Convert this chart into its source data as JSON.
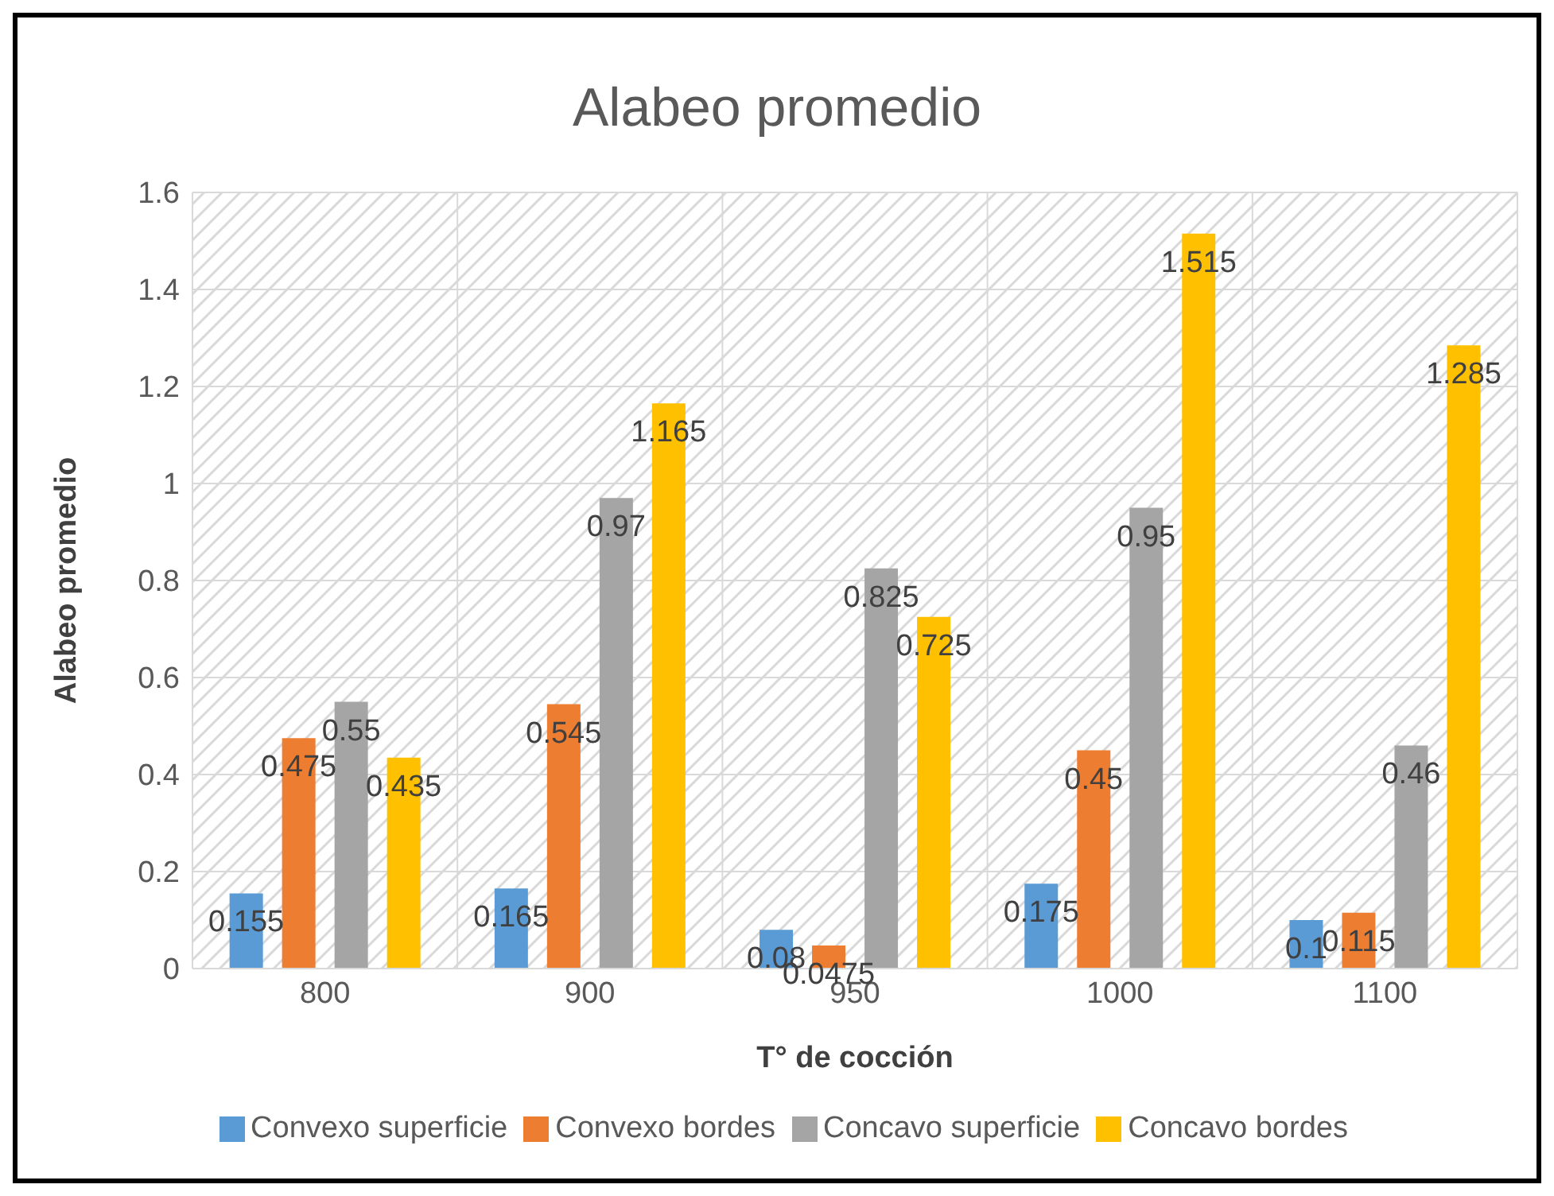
{
  "chart_data": {
    "type": "bar",
    "title": "Alabeo promedio",
    "xlabel": "T° de cocción",
    "ylabel": "Alabeo promedio",
    "categories": [
      "800",
      "900",
      "950",
      "1000",
      "1100"
    ],
    "series": [
      {
        "name": "Convexo superficie",
        "color": "#5b9bd5",
        "values": [
          0.155,
          0.165,
          0.08,
          0.175,
          0.1
        ]
      },
      {
        "name": "Convexo bordes",
        "color": "#ed7d31",
        "values": [
          0.475,
          0.545,
          0.0475,
          0.45,
          0.115
        ]
      },
      {
        "name": "Concavo superficie",
        "color": "#a5a5a5",
        "values": [
          0.55,
          0.97,
          0.825,
          0.95,
          0.46
        ]
      },
      {
        "name": "Concavo bordes",
        "color": "#ffc000",
        "values": [
          0.435,
          1.165,
          0.725,
          1.515,
          1.285
        ]
      }
    ],
    "ylim": [
      0,
      1.6
    ],
    "yticks": [
      0,
      0.2,
      0.4,
      0.6,
      0.8,
      1,
      1.2,
      1.4,
      1.6
    ],
    "grid": true,
    "legend": "bottom",
    "data_labels": true
  }
}
